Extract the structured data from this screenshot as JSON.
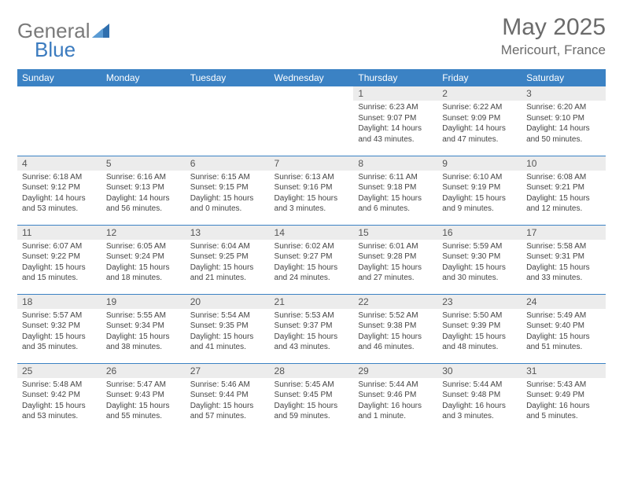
{
  "logo": {
    "text1": "General",
    "text2": "Blue"
  },
  "title": {
    "month": "May 2025",
    "location": "Mericourt, France"
  },
  "colors": {
    "header_bg": "#3b82c4",
    "header_text": "#ffffff",
    "daynum_bg": "#ececec",
    "rule": "#3b82c4",
    "text": "#444444",
    "title_text": "#6b6b6b"
  },
  "weekdays": [
    "Sunday",
    "Monday",
    "Tuesday",
    "Wednesday",
    "Thursday",
    "Friday",
    "Saturday"
  ],
  "weeks": [
    [
      {
        "empty": true
      },
      {
        "empty": true
      },
      {
        "empty": true
      },
      {
        "empty": true
      },
      {
        "n": "1",
        "sr": "Sunrise: 6:23 AM",
        "ss": "Sunset: 9:07 PM",
        "dl": "Daylight: 14 hours and 43 minutes."
      },
      {
        "n": "2",
        "sr": "Sunrise: 6:22 AM",
        "ss": "Sunset: 9:09 PM",
        "dl": "Daylight: 14 hours and 47 minutes."
      },
      {
        "n": "3",
        "sr": "Sunrise: 6:20 AM",
        "ss": "Sunset: 9:10 PM",
        "dl": "Daylight: 14 hours and 50 minutes."
      }
    ],
    [
      {
        "n": "4",
        "sr": "Sunrise: 6:18 AM",
        "ss": "Sunset: 9:12 PM",
        "dl": "Daylight: 14 hours and 53 minutes."
      },
      {
        "n": "5",
        "sr": "Sunrise: 6:16 AM",
        "ss": "Sunset: 9:13 PM",
        "dl": "Daylight: 14 hours and 56 minutes."
      },
      {
        "n": "6",
        "sr": "Sunrise: 6:15 AM",
        "ss": "Sunset: 9:15 PM",
        "dl": "Daylight: 15 hours and 0 minutes."
      },
      {
        "n": "7",
        "sr": "Sunrise: 6:13 AM",
        "ss": "Sunset: 9:16 PM",
        "dl": "Daylight: 15 hours and 3 minutes."
      },
      {
        "n": "8",
        "sr": "Sunrise: 6:11 AM",
        "ss": "Sunset: 9:18 PM",
        "dl": "Daylight: 15 hours and 6 minutes."
      },
      {
        "n": "9",
        "sr": "Sunrise: 6:10 AM",
        "ss": "Sunset: 9:19 PM",
        "dl": "Daylight: 15 hours and 9 minutes."
      },
      {
        "n": "10",
        "sr": "Sunrise: 6:08 AM",
        "ss": "Sunset: 9:21 PM",
        "dl": "Daylight: 15 hours and 12 minutes."
      }
    ],
    [
      {
        "n": "11",
        "sr": "Sunrise: 6:07 AM",
        "ss": "Sunset: 9:22 PM",
        "dl": "Daylight: 15 hours and 15 minutes."
      },
      {
        "n": "12",
        "sr": "Sunrise: 6:05 AM",
        "ss": "Sunset: 9:24 PM",
        "dl": "Daylight: 15 hours and 18 minutes."
      },
      {
        "n": "13",
        "sr": "Sunrise: 6:04 AM",
        "ss": "Sunset: 9:25 PM",
        "dl": "Daylight: 15 hours and 21 minutes."
      },
      {
        "n": "14",
        "sr": "Sunrise: 6:02 AM",
        "ss": "Sunset: 9:27 PM",
        "dl": "Daylight: 15 hours and 24 minutes."
      },
      {
        "n": "15",
        "sr": "Sunrise: 6:01 AM",
        "ss": "Sunset: 9:28 PM",
        "dl": "Daylight: 15 hours and 27 minutes."
      },
      {
        "n": "16",
        "sr": "Sunrise: 5:59 AM",
        "ss": "Sunset: 9:30 PM",
        "dl": "Daylight: 15 hours and 30 minutes."
      },
      {
        "n": "17",
        "sr": "Sunrise: 5:58 AM",
        "ss": "Sunset: 9:31 PM",
        "dl": "Daylight: 15 hours and 33 minutes."
      }
    ],
    [
      {
        "n": "18",
        "sr": "Sunrise: 5:57 AM",
        "ss": "Sunset: 9:32 PM",
        "dl": "Daylight: 15 hours and 35 minutes."
      },
      {
        "n": "19",
        "sr": "Sunrise: 5:55 AM",
        "ss": "Sunset: 9:34 PM",
        "dl": "Daylight: 15 hours and 38 minutes."
      },
      {
        "n": "20",
        "sr": "Sunrise: 5:54 AM",
        "ss": "Sunset: 9:35 PM",
        "dl": "Daylight: 15 hours and 41 minutes."
      },
      {
        "n": "21",
        "sr": "Sunrise: 5:53 AM",
        "ss": "Sunset: 9:37 PM",
        "dl": "Daylight: 15 hours and 43 minutes."
      },
      {
        "n": "22",
        "sr": "Sunrise: 5:52 AM",
        "ss": "Sunset: 9:38 PM",
        "dl": "Daylight: 15 hours and 46 minutes."
      },
      {
        "n": "23",
        "sr": "Sunrise: 5:50 AM",
        "ss": "Sunset: 9:39 PM",
        "dl": "Daylight: 15 hours and 48 minutes."
      },
      {
        "n": "24",
        "sr": "Sunrise: 5:49 AM",
        "ss": "Sunset: 9:40 PM",
        "dl": "Daylight: 15 hours and 51 minutes."
      }
    ],
    [
      {
        "n": "25",
        "sr": "Sunrise: 5:48 AM",
        "ss": "Sunset: 9:42 PM",
        "dl": "Daylight: 15 hours and 53 minutes."
      },
      {
        "n": "26",
        "sr": "Sunrise: 5:47 AM",
        "ss": "Sunset: 9:43 PM",
        "dl": "Daylight: 15 hours and 55 minutes."
      },
      {
        "n": "27",
        "sr": "Sunrise: 5:46 AM",
        "ss": "Sunset: 9:44 PM",
        "dl": "Daylight: 15 hours and 57 minutes."
      },
      {
        "n": "28",
        "sr": "Sunrise: 5:45 AM",
        "ss": "Sunset: 9:45 PM",
        "dl": "Daylight: 15 hours and 59 minutes."
      },
      {
        "n": "29",
        "sr": "Sunrise: 5:44 AM",
        "ss": "Sunset: 9:46 PM",
        "dl": "Daylight: 16 hours and 1 minute."
      },
      {
        "n": "30",
        "sr": "Sunrise: 5:44 AM",
        "ss": "Sunset: 9:48 PM",
        "dl": "Daylight: 16 hours and 3 minutes."
      },
      {
        "n": "31",
        "sr": "Sunrise: 5:43 AM",
        "ss": "Sunset: 9:49 PM",
        "dl": "Daylight: 16 hours and 5 minutes."
      }
    ]
  ]
}
